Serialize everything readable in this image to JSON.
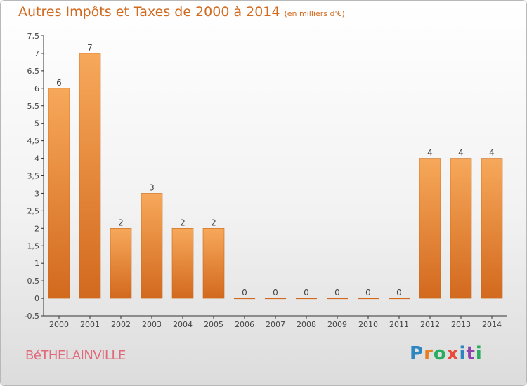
{
  "title": "Autres Impôts et Taxes de 2000 à 2014",
  "subtitle": "(en milliers d'€)",
  "commune": "BéTHELAINVILLE",
  "logo": {
    "text": "Proxiti",
    "letters": [
      {
        "ch": "P",
        "color": "#2e86c1"
      },
      {
        "ch": "r",
        "color": "#e67e22"
      },
      {
        "ch": "o",
        "color": "#27ae60"
      },
      {
        "ch": "x",
        "color": "#e74c3c"
      },
      {
        "ch": "i",
        "color": "#2e86c1"
      },
      {
        "ch": "t",
        "color": "#8e44ad"
      },
      {
        "ch": "i",
        "color": "#27ae60"
      }
    ]
  },
  "colors": {
    "bar_light": "#f7a85a",
    "bar_dark": "#d2691e",
    "axis": "#333333",
    "grid": "#bbbbbb"
  },
  "chart_data": {
    "type": "bar",
    "categories": [
      "2000",
      "2001",
      "2002",
      "2003",
      "2004",
      "2005",
      "2006",
      "2007",
      "2008",
      "2009",
      "2010",
      "2011",
      "2012",
      "2013",
      "2014"
    ],
    "values": [
      6,
      7,
      2,
      3,
      2,
      2,
      0,
      0,
      0,
      0,
      0,
      0,
      4,
      4,
      4
    ],
    "data_labels": [
      "6",
      "7",
      "2",
      "3",
      "2",
      "2",
      "0",
      "0",
      "0",
      "0",
      "0",
      "0",
      "4",
      "4",
      "4"
    ],
    "ylim": [
      -0.5,
      7.5
    ],
    "yticks": [
      -0.5,
      0,
      0.5,
      1,
      1.5,
      2,
      2.5,
      3,
      3.5,
      4,
      4.5,
      5,
      5.5,
      6,
      6.5,
      7,
      7.5
    ],
    "ytick_labels": [
      "-0,5",
      "0",
      "0,5",
      "1",
      "1,5",
      "2",
      "2,5",
      "3",
      "3,5",
      "4",
      "4,5",
      "5",
      "5,5",
      "6",
      "6,5",
      "7",
      "7,5"
    ],
    "title": "Autres Impôts et Taxes de 2000 à 2014",
    "xlabel": "",
    "ylabel": "",
    "grid": false,
    "legend": "none"
  }
}
